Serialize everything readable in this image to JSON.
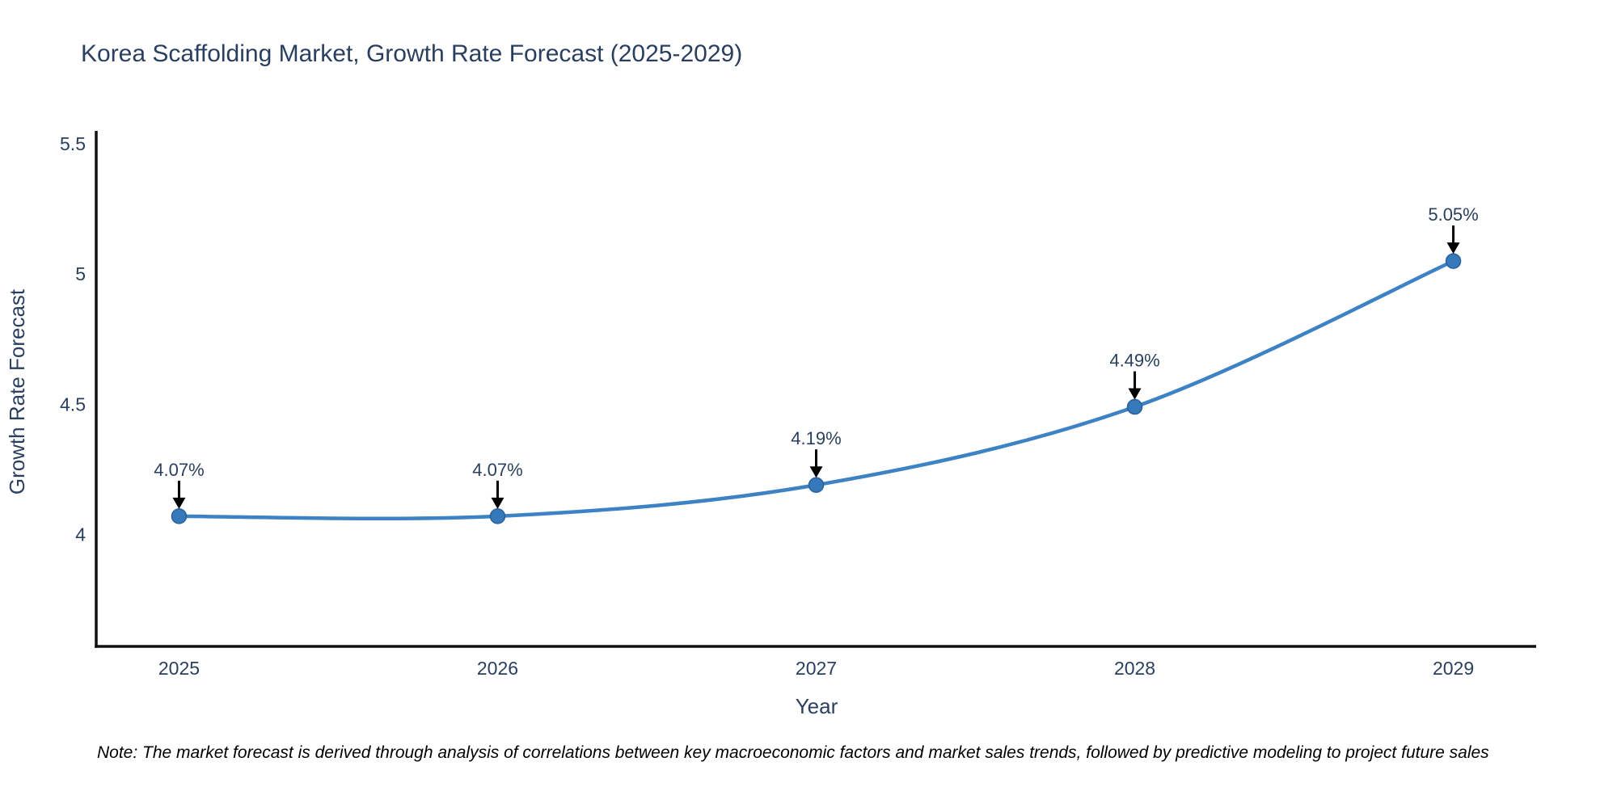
{
  "title": "Korea Scaffolding Market, Growth Rate Forecast (2025-2029)",
  "note": "Note: The market forecast is derived through analysis of correlations between key macroeconomic factors and market sales trends, followed by predictive modeling to project future sales",
  "chart_data": {
    "type": "line",
    "title": "Korea Scaffolding Market, Growth Rate Forecast (2025-2029)",
    "xlabel": "Year",
    "ylabel": "Growth Rate Forecast",
    "x": [
      2025,
      2026,
      2027,
      2028,
      2029
    ],
    "categories": [
      "2025",
      "2026",
      "2027",
      "2028",
      "2029"
    ],
    "values": [
      4.07,
      4.07,
      4.19,
      4.49,
      5.05
    ],
    "point_labels": [
      "4.07%",
      "4.07%",
      "4.19%",
      "4.49%",
      "5.05%"
    ],
    "yticks": [
      4,
      4.5,
      5,
      5.5
    ],
    "ytick_labels": [
      "4",
      "4.5",
      "5",
      "5.5"
    ],
    "xlim": [
      2024.74,
      2029.26
    ],
    "ylim": [
      3.57,
      5.55
    ],
    "grid": false,
    "legend": "none",
    "line_color": "#3d82c4",
    "marker_color": "#3579bb",
    "marker_edge_color": "#2a6099",
    "text_color": "#2a3f5f",
    "axis_color": "#111111",
    "arrow_color": "#000000"
  }
}
